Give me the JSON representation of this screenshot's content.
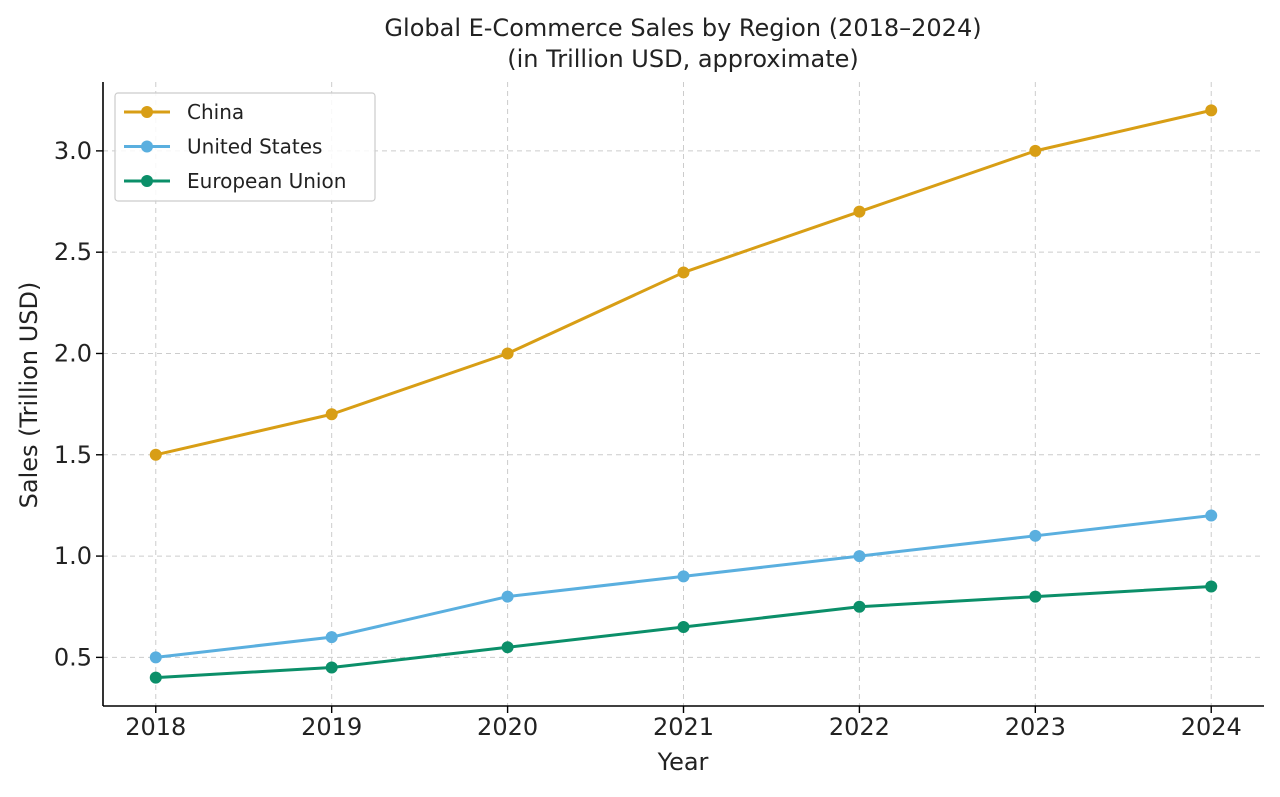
{
  "chart_data": {
    "type": "line",
    "title": "Global E-Commerce Sales by Region (2018–2024)",
    "subtitle": "(in Trillion USD, approximate)",
    "xlabel": "Year",
    "ylabel": "Sales (Trillion USD)",
    "x": [
      2018,
      2019,
      2020,
      2021,
      2022,
      2023,
      2024
    ],
    "x_tick_labels": [
      "2018",
      "2019",
      "2020",
      "2021",
      "2022",
      "2023",
      "2024"
    ],
    "y_ticks": [
      0.5,
      1.0,
      1.5,
      2.0,
      2.5,
      3.0
    ],
    "y_tick_labels": [
      "0.5",
      "1.0",
      "1.5",
      "2.0",
      "2.5",
      "3.0"
    ],
    "xlim": [
      2017.7,
      2024.3
    ],
    "ylim": [
      0.26,
      3.34
    ],
    "grid": true,
    "legend_position": "top-left",
    "series": [
      {
        "name": "China",
        "color": "#D89E15",
        "values": [
          1.5,
          1.7,
          2.0,
          2.4,
          2.7,
          3.0,
          3.2
        ]
      },
      {
        "name": "United States",
        "color": "#5AAFDF",
        "values": [
          0.5,
          0.6,
          0.8,
          0.9,
          1.0,
          1.1,
          1.2
        ]
      },
      {
        "name": "European Union",
        "color": "#0B8F69",
        "values": [
          0.4,
          0.45,
          0.55,
          0.65,
          0.75,
          0.8,
          0.85
        ]
      }
    ]
  }
}
